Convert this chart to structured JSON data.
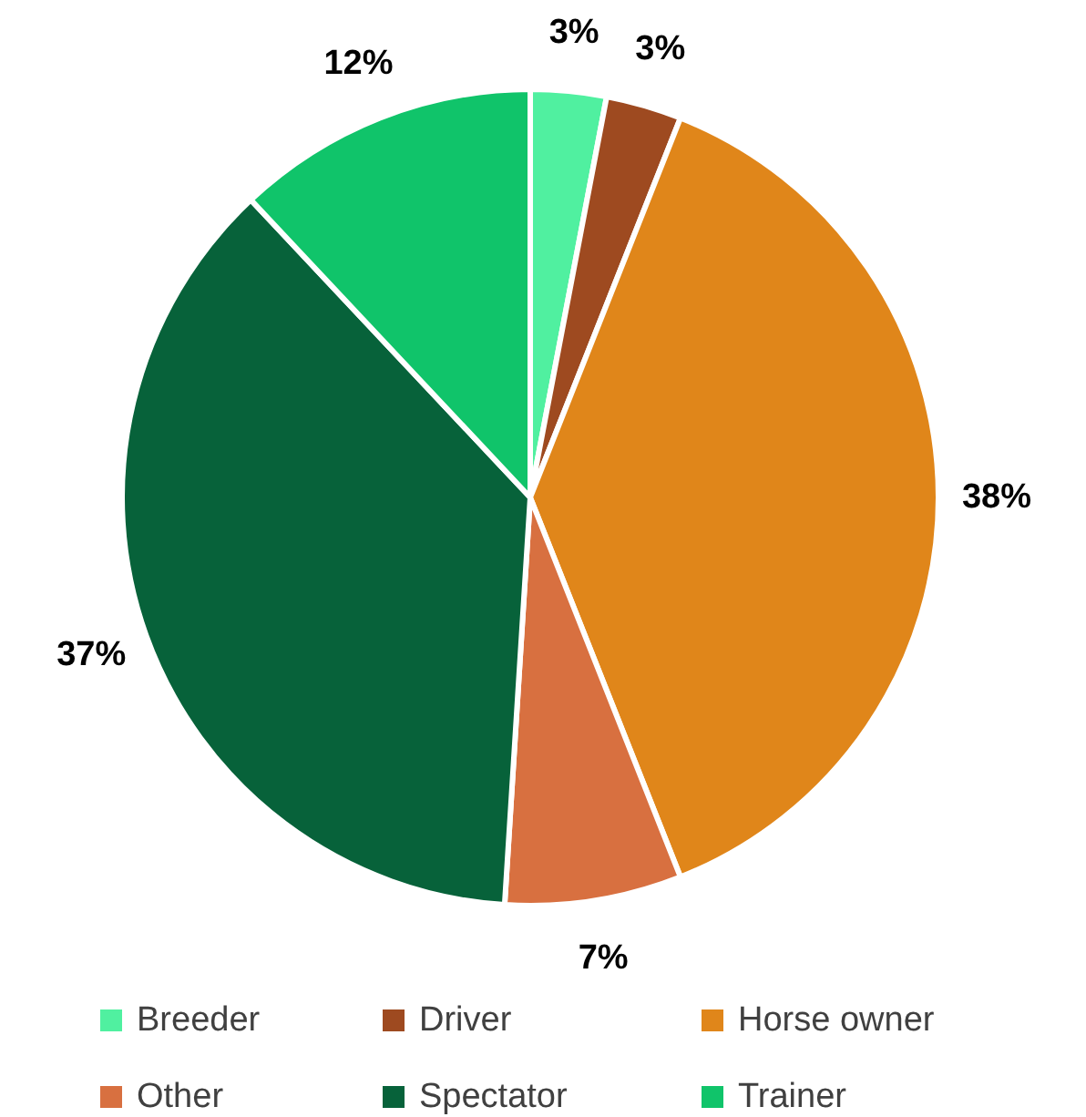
{
  "chart_data": {
    "type": "pie",
    "categories": [
      "Breeder",
      "Driver",
      "Horse owner",
      "Other",
      "Spectator",
      "Trainer"
    ],
    "values": [
      3,
      3,
      38,
      7,
      37,
      12
    ],
    "colors": [
      "#50f0a0",
      "#9e4a20",
      "#e0861a",
      "#d87040",
      "#07623a",
      "#10c46a"
    ],
    "value_labels": [
      "3%",
      "3%",
      "38%",
      "7%",
      "37%",
      "12%"
    ],
    "legend": "bottom"
  }
}
